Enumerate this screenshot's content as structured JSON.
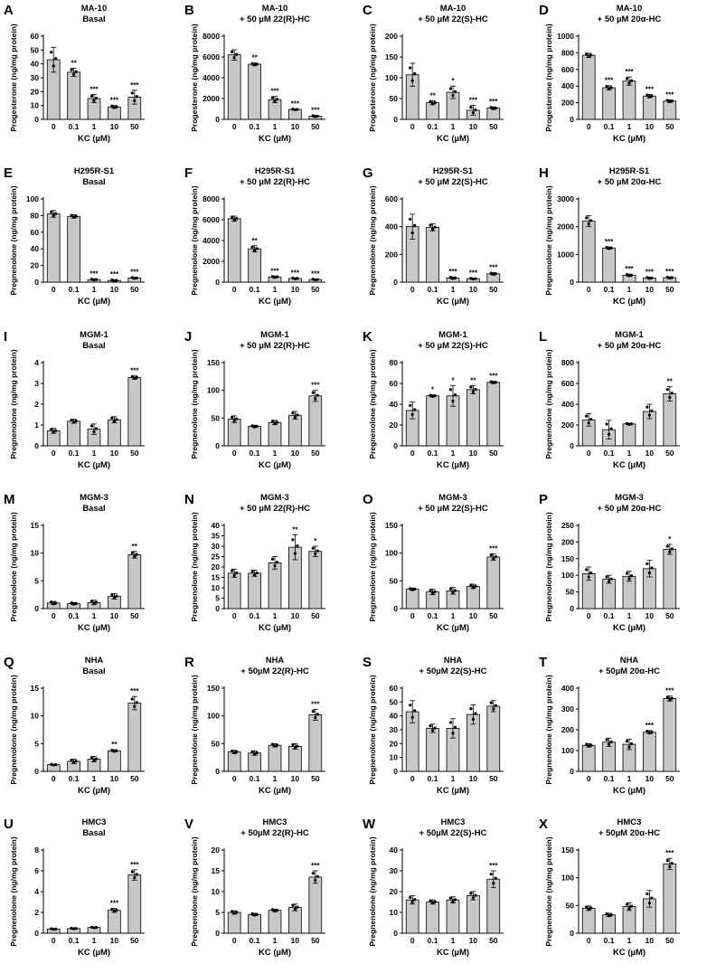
{
  "figure": {
    "x_categories": [
      "0",
      "0.1",
      "1",
      "10",
      "50"
    ],
    "xlabel": "KC (µM)",
    "colors": {
      "bar": "#c8c8c8",
      "edge": "#000000"
    }
  },
  "chart_data": [
    {
      "label": "A",
      "title": [
        "MA-10",
        "Basal"
      ],
      "ylabel": "Progesterone (ng/mg protein)",
      "type": "bar",
      "ylim": [
        0,
        60
      ],
      "yticks": [
        0,
        10,
        20,
        30,
        40,
        50,
        60
      ],
      "values": [
        43,
        34,
        15,
        9,
        16
      ],
      "errors": [
        9,
        3,
        3,
        1,
        5
      ],
      "sig": [
        "",
        "**",
        "***",
        "***",
        "***"
      ]
    },
    {
      "label": "B",
      "title": [
        "MA-10",
        "+ 50 µM 22(R)-HC"
      ],
      "ylabel": "Progesterone (ng/mg protein)",
      "type": "bar",
      "ylim": [
        0,
        8000
      ],
      "yticks": [
        0,
        2000,
        4000,
        6000,
        8000
      ],
      "values": [
        6200,
        5300,
        1900,
        950,
        300
      ],
      "errors": [
        500,
        120,
        300,
        60,
        80
      ],
      "sig": [
        "",
        "**",
        "***",
        "***",
        "***"
      ]
    },
    {
      "label": "C",
      "title": [
        "MA-10",
        "+ 50 µM 22(S)-HC"
      ],
      "ylabel": "Progesterone (ng/mg protein)",
      "type": "bar",
      "ylim": [
        0,
        200
      ],
      "yticks": [
        0,
        50,
        100,
        150,
        200
      ],
      "values": [
        107,
        40,
        65,
        22,
        27
      ],
      "errors": [
        28,
        5,
        15,
        12,
        3
      ],
      "sig": [
        "",
        "**",
        "*",
        "***",
        "***"
      ]
    },
    {
      "label": "D",
      "title": [
        "MA-10",
        "+ 50 µM 20α-HC"
      ],
      "ylabel": "Progesterone (ng/mg protein)",
      "type": "bar",
      "ylim": [
        0,
        1000
      ],
      "yticks": [
        0,
        200,
        400,
        600,
        800,
        1000
      ],
      "values": [
        770,
        380,
        460,
        280,
        220
      ],
      "errors": [
        25,
        25,
        50,
        20,
        15
      ],
      "sig": [
        "",
        "***",
        "***",
        "***",
        "***"
      ]
    },
    {
      "label": "E",
      "title": [
        "H295R-S1",
        "Basal"
      ],
      "ylabel": "Pregnenolone (ng/mg protein)",
      "type": "bar",
      "ylim": [
        0,
        100
      ],
      "yticks": [
        0,
        20,
        40,
        60,
        80,
        100
      ],
      "values": [
        82,
        79,
        3,
        2,
        5
      ],
      "errors": [
        4,
        2,
        1,
        1,
        1
      ],
      "sig": [
        "",
        "",
        "***",
        "***",
        "***"
      ]
    },
    {
      "label": "F",
      "title": [
        "H295R-S1",
        "+ 50 µM 22(R)-HC"
      ],
      "ylabel": "Pregnenolone (ng/mg protein)",
      "type": "bar",
      "ylim": [
        0,
        8000
      ],
      "yticks": [
        0,
        2000,
        4000,
        6000,
        8000
      ],
      "values": [
        6100,
        3200,
        500,
        350,
        250
      ],
      "errors": [
        250,
        300,
        80,
        60,
        60
      ],
      "sig": [
        "",
        "**",
        "***",
        "***",
        "***"
      ]
    },
    {
      "label": "G",
      "title": [
        "H295R-S1",
        "+ 50 µM 22(S)-HC"
      ],
      "ylabel": "Pregnenolone (ng/mg protein)",
      "type": "bar",
      "ylim": [
        0,
        600
      ],
      "yticks": [
        0,
        200,
        400,
        600
      ],
      "values": [
        400,
        395,
        30,
        25,
        60
      ],
      "errors": [
        90,
        25,
        8,
        5,
        8
      ],
      "sig": [
        "",
        "",
        "***",
        "***",
        "***"
      ]
    },
    {
      "label": "H",
      "title": [
        "H295R-S1",
        "+ 50 µM 20α-HC"
      ],
      "ylabel": "Pregnenolone (ng/mg protein)",
      "type": "bar",
      "ylim": [
        0,
        3000
      ],
      "yticks": [
        0,
        1000,
        2000,
        3000
      ],
      "values": [
        2200,
        1230,
        250,
        150,
        160
      ],
      "errors": [
        200,
        40,
        40,
        30,
        30
      ],
      "sig": [
        "",
        "***",
        "***",
        "***",
        "***"
      ]
    },
    {
      "label": "I",
      "title": [
        "MGM-1",
        "Basal"
      ],
      "ylabel": "Pregnenolone (ng/mg protein)",
      "type": "bar",
      "ylim": [
        0,
        4
      ],
      "yticks": [
        0,
        1,
        2,
        3,
        4
      ],
      "values": [
        0.72,
        1.18,
        0.8,
        1.25,
        3.28
      ],
      "errors": [
        0.12,
        0.1,
        0.25,
        0.15,
        0.08
      ],
      "sig": [
        "",
        "",
        "",
        "",
        "***"
      ]
    },
    {
      "label": "J",
      "title": [
        "MGM-1",
        "+ 50 µM 22(R)-HC"
      ],
      "ylabel": "Pregnenolone (ng/mg protein)",
      "type": "bar",
      "ylim": [
        0,
        150
      ],
      "yticks": [
        0,
        50,
        100,
        150
      ],
      "values": [
        48,
        35,
        42,
        55,
        90
      ],
      "errors": [
        6,
        2,
        4,
        7,
        10
      ],
      "sig": [
        "",
        "",
        "",
        "",
        "***"
      ]
    },
    {
      "label": "K",
      "title": [
        "MGM-1",
        "+ 50 µM 22(S)-HC"
      ],
      "ylabel": "Pregnenolone (ng/mg protein)",
      "type": "bar",
      "ylim": [
        0,
        80
      ],
      "yticks": [
        0,
        20,
        40,
        60,
        80
      ],
      "values": [
        34,
        48,
        48,
        54,
        61
      ],
      "errors": [
        8,
        1,
        10,
        4,
        1
      ],
      "sig": [
        "",
        "*",
        "*",
        "**",
        "***"
      ]
    },
    {
      "label": "L",
      "title": [
        "MGM-1",
        "+ 50 µM 20α-HC"
      ],
      "ylabel": "Pregnenolone (ng/mg protein)",
      "type": "bar",
      "ylim": [
        0,
        800
      ],
      "yticks": [
        0,
        200,
        400,
        600,
        800
      ],
      "values": [
        250,
        155,
        210,
        330,
        500
      ],
      "errors": [
        60,
        90,
        8,
        70,
        70
      ],
      "sig": [
        "",
        "",
        "",
        "",
        "**"
      ]
    },
    {
      "label": "M",
      "title": [
        "MGM-3",
        "Basal"
      ],
      "ylabel": "Pregnenolone (ng/mg protein)",
      "type": "bar",
      "ylim": [
        0,
        15
      ],
      "yticks": [
        0,
        5,
        10,
        15
      ],
      "values": [
        1.0,
        0.9,
        1.1,
        2.2,
        9.7
      ],
      "errors": [
        0.3,
        0.2,
        0.4,
        0.5,
        0.6
      ],
      "sig": [
        "",
        "",
        "",
        "",
        "**"
      ]
    },
    {
      "label": "N",
      "title": [
        "MGM-3",
        "+ 50 µM 22(R)-HC"
      ],
      "ylabel": "Pregnenolone (ng/mg protein)",
      "type": "bar",
      "ylim": [
        0,
        40
      ],
      "yticks": [
        0,
        5,
        10,
        15,
        20,
        25,
        30,
        35,
        40
      ],
      "values": [
        17,
        17,
        22,
        29.5,
        27.5
      ],
      "errors": [
        2,
        1.5,
        3,
        6,
        2.5
      ],
      "sig": [
        "",
        "",
        "",
        "**",
        "*"
      ]
    },
    {
      "label": "O",
      "title": [
        "MGM-3",
        "+ 50 µM 22(S)-HC"
      ],
      "ylabel": "Pregnenolone (ng/mg protein)",
      "type": "bar",
      "ylim": [
        0,
        150
      ],
      "yticks": [
        0,
        50,
        100,
        150
      ],
      "values": [
        35,
        30,
        32,
        40,
        93
      ],
      "errors": [
        2,
        5,
        6,
        4,
        6
      ],
      "sig": [
        "",
        "",
        "",
        "",
        "***"
      ]
    },
    {
      "label": "P",
      "title": [
        "MGM-3",
        "+ 50 µM 20α-HC"
      ],
      "ylabel": "Pregnenolone (ng/mg protein)",
      "type": "bar",
      "ylim": [
        0,
        250
      ],
      "yticks": [
        0,
        50,
        100,
        150,
        200,
        250
      ],
      "values": [
        105,
        88,
        97,
        120,
        178
      ],
      "errors": [
        20,
        12,
        15,
        25,
        15
      ],
      "sig": [
        "",
        "",
        "",
        "",
        "*"
      ]
    },
    {
      "label": "Q",
      "title": [
        "NHA",
        "Basal"
      ],
      "ylabel": "Pregnenolone (ng/mg protein)",
      "type": "bar",
      "ylim": [
        0,
        15
      ],
      "yticks": [
        0,
        5,
        10,
        15
      ],
      "values": [
        1.2,
        1.8,
        2.2,
        3.7,
        12.3
      ],
      "errors": [
        0.1,
        0.4,
        0.5,
        0.2,
        1.2
      ],
      "sig": [
        "",
        "",
        "",
        "**",
        "***"
      ]
    },
    {
      "label": "R",
      "title": [
        "NHA",
        "+ 50µM 22(R)-HC"
      ],
      "ylabel": "Pregnenolone (ng/mg protein)",
      "type": "bar",
      "ylim": [
        0,
        150
      ],
      "yticks": [
        0,
        50,
        100,
        150
      ],
      "values": [
        35,
        33,
        47,
        45,
        102
      ],
      "errors": [
        3,
        4,
        3,
        5,
        10
      ],
      "sig": [
        "",
        "",
        "",
        "",
        "***"
      ]
    },
    {
      "label": "S",
      "title": [
        "NHA",
        "+ 50µM 22(S)-HC"
      ],
      "ylabel": "Pregnenolone (ng/mg protein)",
      "type": "bar",
      "ylim": [
        0,
        60
      ],
      "yticks": [
        0,
        10,
        20,
        30,
        40,
        50,
        60
      ],
      "values": [
        43,
        31,
        31,
        41,
        47
      ],
      "errors": [
        8,
        3,
        7,
        7,
        4
      ],
      "sig": [
        "",
        "",
        "",
        "",
        ""
      ]
    },
    {
      "label": "T",
      "title": [
        "NHA",
        "+ 50µM 20α-HC"
      ],
      "ylabel": "Pregnenolone (ng/mg protein)",
      "type": "bar",
      "ylim": [
        0,
        400
      ],
      "yticks": [
        0,
        100,
        200,
        300,
        400
      ],
      "values": [
        125,
        140,
        130,
        188,
        350
      ],
      "errors": [
        8,
        20,
        25,
        8,
        12
      ],
      "sig": [
        "",
        "",
        "",
        "***",
        "***"
      ]
    },
    {
      "label": "U",
      "title": [
        "HMC3",
        "Basal"
      ],
      "ylabel": "Pregnenolone (ng/mg protein)",
      "type": "bar",
      "ylim": [
        0,
        8
      ],
      "yticks": [
        0,
        2,
        4,
        6,
        8
      ],
      "values": [
        0.4,
        0.45,
        0.55,
        2.2,
        5.6
      ],
      "errors": [
        0.05,
        0.05,
        0.05,
        0.2,
        0.5
      ],
      "sig": [
        "",
        "",
        "",
        "***",
        "***"
      ]
    },
    {
      "label": "V",
      "title": [
        "HMC3",
        "+ 50µM 22(R)-HC"
      ],
      "ylabel": "Pregnenolone (ng/mg protein)",
      "type": "bar",
      "ylim": [
        0,
        20
      ],
      "yticks": [
        0,
        5,
        10,
        15,
        20
      ],
      "values": [
        5,
        4.5,
        5.5,
        6.2,
        13.5
      ],
      "errors": [
        0.4,
        0.3,
        0.3,
        0.8,
        1.5
      ],
      "sig": [
        "",
        "",
        "",
        "",
        "***"
      ]
    },
    {
      "label": "W",
      "title": [
        "HMC3",
        "+ 50µM 22(S)-HC"
      ],
      "ylabel": "Pregnenolone (ng/mg protein)",
      "type": "bar",
      "ylim": [
        0,
        40
      ],
      "yticks": [
        0,
        10,
        20,
        30,
        40
      ],
      "values": [
        16,
        15,
        16,
        18,
        26
      ],
      "errors": [
        2,
        1,
        1.5,
        2,
        4
      ],
      "sig": [
        "",
        "",
        "",
        "",
        "***"
      ]
    },
    {
      "label": "X",
      "title": [
        "HMC3",
        "+ 50µM 20α-HC"
      ],
      "ylabel": "Pregnenolone (ng/mg protein)",
      "type": "bar",
      "ylim": [
        0,
        150
      ],
      "yticks": [
        0,
        50,
        100,
        150
      ],
      "values": [
        45,
        33,
        48,
        62,
        125
      ],
      "errors": [
        4,
        3,
        7,
        15,
        10
      ],
      "sig": [
        "",
        "",
        "",
        "",
        "***"
      ]
    }
  ]
}
